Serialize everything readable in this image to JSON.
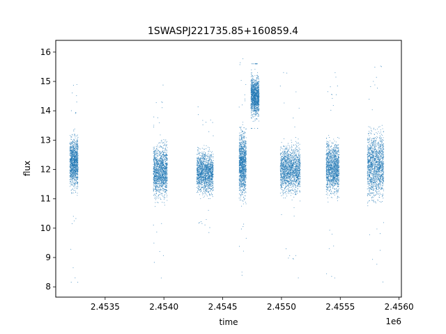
{
  "chart_data": {
    "type": "scatter",
    "title": "1SWASPJ221735.85+160859.4",
    "xlabel": "time",
    "ylabel": "flux",
    "x_offset_label": "1e6",
    "xlim": [
      2.45308,
      2.45602
    ],
    "ylim": [
      7.65,
      16.4
    ],
    "x_ticks": [
      2.4535,
      2.454,
      2.4545,
      2.455,
      2.4555,
      2.456
    ],
    "x_tick_labels": [
      "2.4535",
      "2.4540",
      "2.4545",
      "2.4550",
      "2.4555",
      "2.4560"
    ],
    "y_ticks": [
      8,
      9,
      10,
      11,
      12,
      13,
      14,
      15,
      16
    ],
    "y_tick_labels": [
      "8",
      "9",
      "10",
      "11",
      "12",
      "13",
      "14",
      "15",
      "16"
    ],
    "grid": false,
    "legend": "none",
    "marker_color": "#1f77b4",
    "series": [
      {
        "observing_seasons": [
          {
            "x_start": 2.4532,
            "x_end": 2.45327,
            "core_low": 10.8,
            "core_high": 13.7,
            "min": 8.1,
            "max": 15.0
          },
          {
            "x_start": 2.45391,
            "x_end": 2.45403,
            "core_low": 10.5,
            "core_high": 13.4,
            "min": 8.3,
            "max": 15.4
          },
          {
            "x_start": 2.45428,
            "x_end": 2.45442,
            "core_low": 10.7,
            "core_high": 13.1,
            "min": 9.8,
            "max": 14.2
          },
          {
            "x_start": 2.45464,
            "x_end": 2.4547,
            "core_low": 10.4,
            "core_high": 14.0,
            "min": 8.3,
            "max": 15.9
          },
          {
            "x_start": 2.45474,
            "x_end": 2.45481,
            "core_low": 13.4,
            "core_high": 15.6,
            "min": 13.4,
            "max": 15.6
          },
          {
            "x_start": 2.45499,
            "x_end": 2.45516,
            "core_low": 10.7,
            "core_high": 13.3,
            "min": 8.1,
            "max": 15.6
          },
          {
            "x_start": 2.45538,
            "x_end": 2.45549,
            "core_low": 10.6,
            "core_high": 13.5,
            "min": 8.3,
            "max": 15.4
          },
          {
            "x_start": 2.45573,
            "x_end": 2.45587,
            "core_low": 10.2,
            "core_high": 14.0,
            "min": 8.1,
            "max": 16.0
          }
        ],
        "central_flux": 12.0
      }
    ]
  }
}
